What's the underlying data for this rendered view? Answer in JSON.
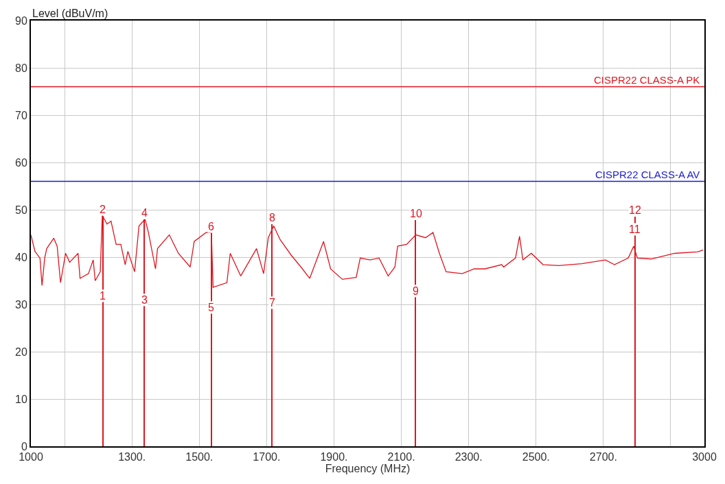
{
  "chart_data": {
    "type": "line",
    "xlabel": "Frequency (MHz)",
    "ylabel": "Level (dBuV/m)",
    "xlim": [
      1000,
      3000
    ],
    "ylim": [
      0,
      90
    ],
    "xticks": [
      1000,
      {
        "value": 1100,
        "label": null
      },
      {
        "value": 1300,
        "label": "1300."
      },
      {
        "value": 1500,
        "label": "1500."
      },
      {
        "value": 1700,
        "label": "1700."
      },
      {
        "value": 1900,
        "label": "1900."
      },
      {
        "value": 2100,
        "label": "2100."
      },
      {
        "value": 2300,
        "label": "2300."
      },
      {
        "value": 2500,
        "label": "2500."
      },
      {
        "value": 2700,
        "label": "2700."
      },
      {
        "value": 2900,
        "label": null
      },
      3000
    ],
    "yticks": [
      0,
      10,
      20,
      30,
      40,
      50,
      60,
      70,
      80,
      90
    ],
    "grid": true,
    "series": [
      {
        "color": "#e0141e",
        "x": [
          1000,
          1012,
          1027,
          1033,
          1041,
          1047,
          1068,
          1078,
          1088,
          1103,
          1115,
          1140,
          1146,
          1171,
          1185,
          1191,
          1206,
          1212,
          1226,
          1238,
          1253,
          1267,
          1280,
          1288,
          1308,
          1321,
          1339,
          1349,
          1370,
          1376,
          1411,
          1438,
          1473,
          1485,
          1520,
          1536,
          1541,
          1582,
          1592,
          1623,
          1670,
          1691,
          1705,
          1721,
          1740,
          1773,
          1802,
          1828,
          1869,
          1890,
          1925,
          1966,
          1978,
          2007,
          2034,
          2061,
          2081,
          2089,
          2116,
          2143,
          2172,
          2194,
          2213,
          2233,
          2281,
          2316,
          2348,
          2398,
          2404,
          2439,
          2451,
          2461,
          2486,
          2521,
          2568,
          2636,
          2706,
          2733,
          2774,
          2790,
          2801,
          2842,
          2912,
          2980,
          2996
        ],
        "values": [
          44.7,
          41.2,
          39.8,
          34.0,
          39.8,
          41.8,
          44.0,
          42.3,
          34.6,
          40.8,
          38.9,
          40.8,
          35.5,
          36.5,
          39.4,
          35.0,
          36.9,
          48.8,
          47.0,
          47.6,
          42.7,
          42.7,
          38.4,
          41.2,
          36.9,
          46.6,
          48.0,
          45.2,
          37.5,
          41.8,
          44.7,
          40.8,
          37.9,
          43.3,
          45.2,
          45.2,
          33.6,
          34.6,
          40.8,
          36.0,
          41.8,
          36.5,
          44.1,
          46.6,
          43.7,
          40.4,
          37.9,
          35.5,
          43.3,
          37.5,
          35.3,
          35.7,
          39.8,
          39.4,
          39.8,
          36.0,
          37.9,
          42.3,
          42.7,
          44.7,
          44.1,
          45.2,
          40.8,
          36.9,
          36.5,
          37.5,
          37.5,
          38.4,
          37.9,
          39.8,
          44.4,
          39.4,
          40.8,
          38.4,
          38.2,
          38.6,
          39.4,
          38.4,
          39.8,
          42.3,
          39.8,
          39.6,
          40.8,
          41.1,
          41.5
        ]
      },
      {
        "type": "bar",
        "color": "#e0141e",
        "x": [
          1214,
          1337,
          1536,
          1717,
          2143,
          2794
        ],
        "values": [
          48.7,
          48.0,
          45.1,
          47.0,
          47.8,
          48.6
        ]
      }
    ],
    "ref_lines": [
      {
        "axis": "y",
        "value": 76,
        "label": "CISPR22 CLASS-A PK",
        "color": "#e0141e"
      },
      {
        "axis": "y",
        "value": 56,
        "label": "CISPR22 CLASS-A AV",
        "color": "#1a1ad0"
      }
    ],
    "annotations": [
      {
        "text": "1",
        "x": 1214,
        "y": 30.5
      },
      {
        "text": "2",
        "x": 1214,
        "y": 48.7
      },
      {
        "text": "3",
        "x": 1337,
        "y": 29.5
      },
      {
        "text": "4",
        "x": 1337,
        "y": 48.0
      },
      {
        "text": "5",
        "x": 1536,
        "y": 28
      },
      {
        "text": "6",
        "x": 1536,
        "y": 45.1
      },
      {
        "text": "7",
        "x": 1717,
        "y": 29
      },
      {
        "text": "8",
        "x": 1717,
        "y": 47.0
      },
      {
        "text": "9",
        "x": 2143,
        "y": 31.5
      },
      {
        "text": "10",
        "x": 2143,
        "y": 47.8
      },
      {
        "text": "11",
        "x": 2794,
        "y": 44.5
      },
      {
        "text": "12",
        "x": 2794,
        "y": 48.6
      }
    ]
  }
}
